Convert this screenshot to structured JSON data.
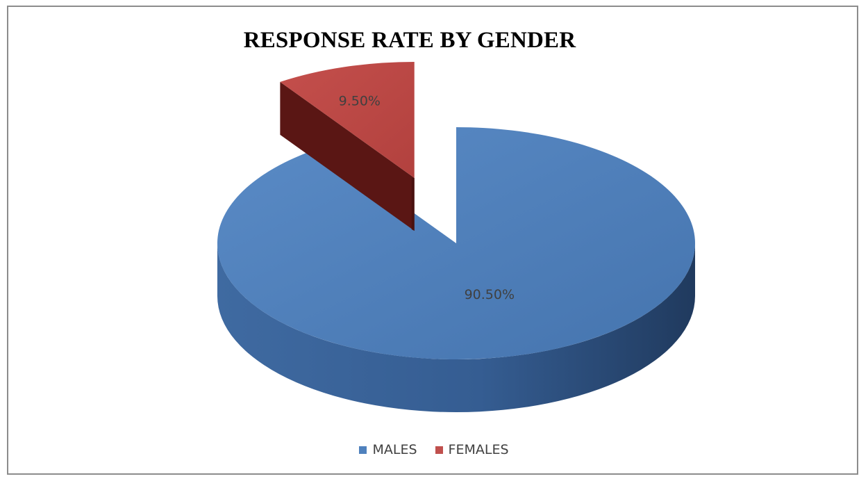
{
  "chart_data": {
    "type": "pie",
    "title": "RESPONSE RATE BY GENDER",
    "categories": [
      "MALES",
      "FEMALES"
    ],
    "values": [
      90.5,
      9.5
    ],
    "data_labels": [
      "90.50%",
      "9.50%"
    ],
    "colors": [
      "#4F81BD",
      "#C0504D"
    ],
    "legend_position": "bottom",
    "exploded": [
      "FEMALES"
    ],
    "style": "3d"
  },
  "legend": {
    "items": [
      {
        "label": "MALES",
        "color": "#4F81BD"
      },
      {
        "label": "FEMALES",
        "color": "#C0504D"
      }
    ]
  }
}
